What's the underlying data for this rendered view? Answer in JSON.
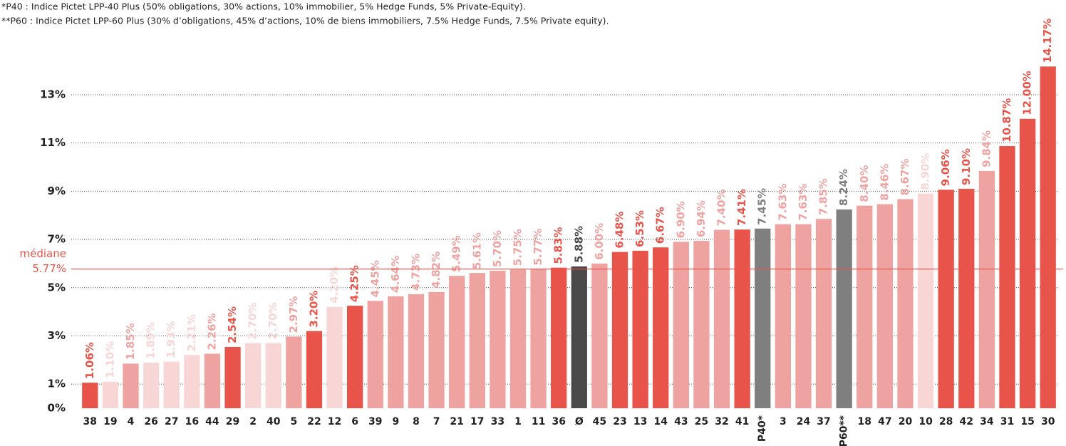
{
  "notes": [
    "*P40 : Indice Pictet LPP-40 Plus (50% obligations, 30% actions, 10% immobilier, 5% Hedge Funds, 5% Private-Equity).",
    "**P60 : Indice Pictet LPP-60 Plus (30% d’obligations, 45% d’actions, 10% de biens immobiliers, 7.5% Hedge Funds, 7.5% Private equity)."
  ],
  "chart_data": {
    "type": "bar",
    "categories": [
      "38",
      "19",
      "4",
      "26",
      "27",
      "16",
      "44",
      "29",
      "2",
      "40",
      "5",
      "22",
      "12",
      "6",
      "39",
      "9",
      "8",
      "7",
      "21",
      "17",
      "33",
      "1",
      "11",
      "36",
      "Ø",
      "45",
      "23",
      "13",
      "14",
      "43",
      "25",
      "32",
      "41",
      "P40*",
      "3",
      "24",
      "37",
      "P60**",
      "18",
      "47",
      "20",
      "10",
      "28",
      "42",
      "34",
      "31",
      "15",
      "30"
    ],
    "values": [
      1.06,
      1.1,
      1.85,
      1.89,
      1.93,
      2.21,
      2.26,
      2.54,
      2.7,
      2.7,
      2.97,
      3.2,
      4.2,
      4.25,
      4.45,
      4.64,
      4.73,
      4.82,
      5.49,
      5.61,
      5.7,
      5.75,
      5.77,
      5.83,
      5.88,
      6.0,
      6.48,
      6.53,
      6.67,
      6.9,
      6.94,
      7.4,
      7.41,
      7.45,
      7.63,
      7.63,
      7.85,
      8.24,
      8.4,
      8.46,
      8.67,
      8.9,
      9.06,
      9.1,
      9.84,
      10.87,
      12.0,
      14.17
    ],
    "value_labels": [
      "1.06%",
      "1.10%",
      "1.85%",
      "1.89%",
      "1.93%",
      "2.21%",
      "2.26%",
      "2.54%",
      "2.70%",
      "2.70%",
      "2.97%",
      "3.20%",
      "4.20%",
      "4.25%",
      "4.45%",
      "4.64%",
      "4.73%",
      "4.82%",
      "5.49%",
      "5.61%",
      "5.70%",
      "5.75%",
      "5.77%",
      "5.83%",
      "5.88%",
      "6.00%",
      "6.48%",
      "6.53%",
      "6.67%",
      "6.90%",
      "6.94%",
      "7.40%",
      "7.41%",
      "7.45%",
      "7.63%",
      "7.63%",
      "7.85%",
      "8.24%",
      "8.40%",
      "8.46%",
      "8.67%",
      "8.90%",
      "9.06%",
      "9.10%",
      "9.84%",
      "10.87%",
      "12.00%",
      "14.17%"
    ],
    "colors": [
      "#e8534a",
      "#f7d6d5",
      "#eea3a1",
      "#f7d6d5",
      "#f7d6d5",
      "#f7d6d5",
      "#eea3a1",
      "#e8534a",
      "#f7d6d5",
      "#f7d6d5",
      "#eea3a1",
      "#e8534a",
      "#f7d6d5",
      "#e8534a",
      "#eea3a1",
      "#eea3a1",
      "#eea3a1",
      "#eea3a1",
      "#eea3a1",
      "#eea3a1",
      "#eea3a1",
      "#eea3a1",
      "#eea3a1",
      "#e8534a",
      "#4a4a4a",
      "#eea3a1",
      "#e8534a",
      "#e8534a",
      "#e8534a",
      "#eea3a1",
      "#eea3a1",
      "#eea3a1",
      "#e8534a",
      "#7f7f7f",
      "#eea3a1",
      "#eea3a1",
      "#eea3a1",
      "#7f7f7f",
      "#eea3a1",
      "#eea3a1",
      "#eea3a1",
      "#f7d6d5",
      "#e8534a",
      "#e8534a",
      "#eea3a1",
      "#e8534a",
      "#e8534a",
      "#e8534a"
    ],
    "ylim": [
      0,
      15
    ],
    "yticks": [
      {
        "value": 0,
        "label": "0%"
      },
      {
        "value": 1,
        "label": "1%"
      },
      {
        "value": 3,
        "label": "3%"
      },
      {
        "value": 5,
        "label": "5%"
      },
      {
        "value": 7,
        "label": "7%"
      },
      {
        "value": 9,
        "label": "9%"
      },
      {
        "value": 11,
        "label": "11%"
      },
      {
        "value": 13,
        "label": "13%"
      }
    ],
    "grid": true,
    "annotations": [
      {
        "text": "médiane",
        "value": 5.77,
        "value_label": "5.77%",
        "color": "#e8534a"
      }
    ]
  }
}
